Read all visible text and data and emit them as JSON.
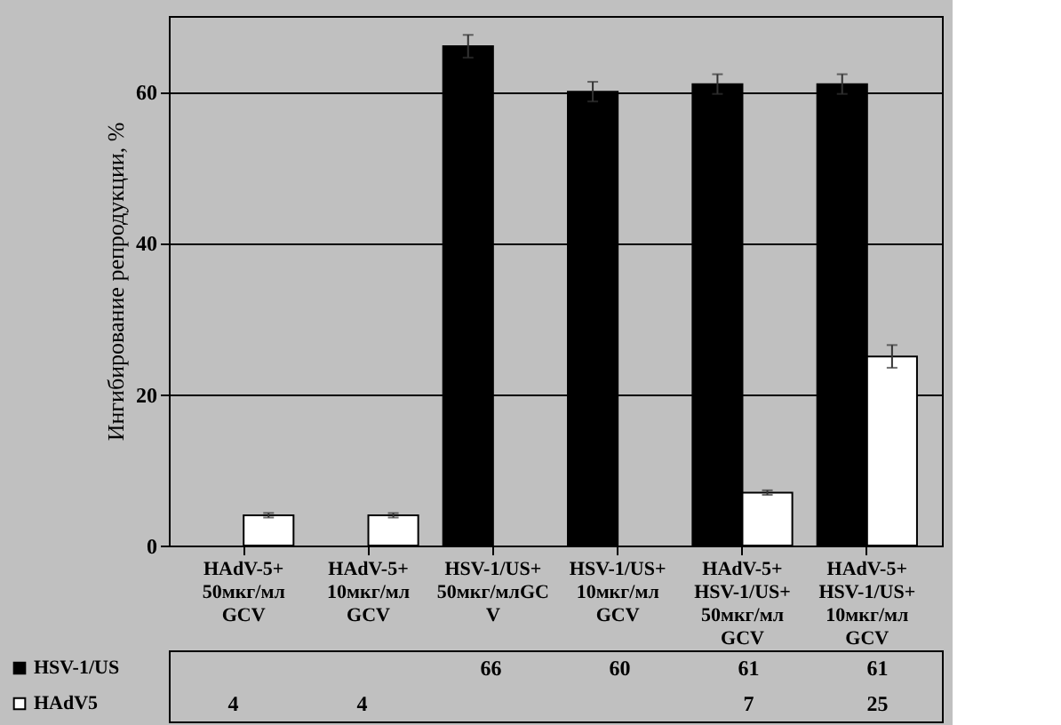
{
  "chart_data": {
    "type": "bar",
    "ylabel": "Ингибирование репродукции,  %",
    "categories": [
      "HAdV-5+\n50мкг/мл\nGCV",
      "HAdV-5+\n10мкг/мл\nGCV",
      "HSV-1/US+\n50мкг/млGC\nV",
      "HSV-1/US+\n10мкг/мл\nGCV",
      "HAdV-5+\nHSV-1/US+\n50мкг/мл\nGCV",
      "HAdV-5+\nHSV-1/US+\n10мкг/мл\nGCV"
    ],
    "series": [
      {
        "name": "HSV-1/US",
        "color": "#000000",
        "values": [
          null,
          null,
          66,
          60,
          61,
          61
        ],
        "errors": [
          null,
          null,
          1.5,
          1.3,
          1.3,
          1.3
        ]
      },
      {
        "name": "HAdV5",
        "color": "#ffffff",
        "values": [
          4,
          4,
          null,
          null,
          7,
          25
        ],
        "errors": [
          0.3,
          0.3,
          null,
          null,
          0.3,
          1.5
        ]
      }
    ],
    "ylim": [
      0,
      70
    ],
    "yticks": [
      0,
      20,
      40,
      60
    ],
    "grid": "y",
    "legend": "bottom",
    "data_labels": true
  }
}
